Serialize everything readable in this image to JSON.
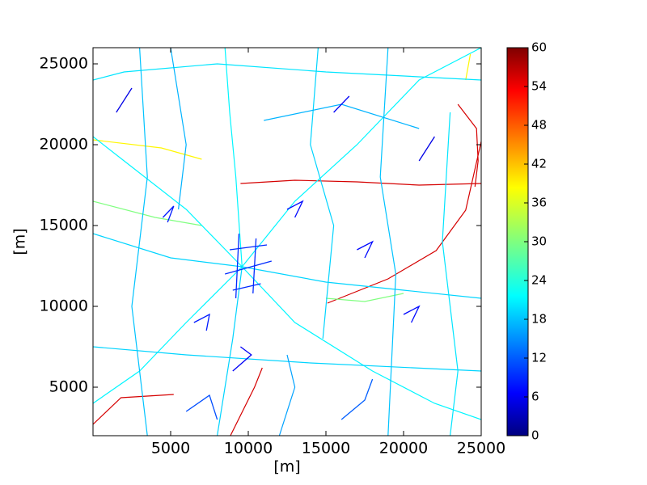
{
  "chart_data": {
    "type": "network",
    "xlabel": "[m]",
    "ylabel": "[m]",
    "xlim": [
      0,
      25000
    ],
    "ylim": [
      2000,
      26000
    ],
    "xticks": [
      5000,
      10000,
      15000,
      20000,
      25000
    ],
    "yticks": [
      5000,
      10000,
      15000,
      20000,
      25000
    ],
    "colorbar": {
      "colormap": "jet",
      "lim": [
        0,
        60
      ],
      "ticks": [
        0,
        6,
        12,
        18,
        24,
        30,
        36,
        42,
        48,
        54,
        60
      ]
    },
    "roads": [
      {
        "speed": 55,
        "x": [
          9500,
          13000,
          17000,
          21000,
          25000
        ],
        "y": [
          17600,
          17800,
          17700,
          17500,
          17600
        ]
      },
      {
        "speed": 55,
        "x": [
          15100,
          19000,
          22100,
          24000,
          25000
        ],
        "y": [
          10200,
          11700,
          13450,
          15950,
          20200
        ]
      },
      {
        "speed": 55,
        "x": [
          23500,
          24700,
          24800,
          24600
        ],
        "y": [
          22500,
          21000,
          19000,
          17400
        ]
      },
      {
        "speed": 55,
        "x": [
          8850,
          10400,
          10900
        ],
        "y": [
          2000,
          5000,
          6200
        ]
      },
      {
        "speed": 55,
        "x": [
          0,
          1800,
          5200
        ],
        "y": [
          2700,
          4350,
          4550
        ]
      },
      {
        "speed": 38,
        "x": [
          0,
          4400,
          7000
        ],
        "y": [
          20300,
          19800,
          19100
        ]
      },
      {
        "speed": 38,
        "x": [
          24000,
          24300
        ],
        "y": [
          24000,
          25600
        ]
      },
      {
        "speed": 30,
        "x": [
          0,
          4000,
          7000
        ],
        "y": [
          16500,
          15500,
          15000
        ]
      },
      {
        "speed": 30,
        "x": [
          15000,
          17500,
          20000
        ],
        "y": [
          10500,
          10300,
          10800
        ]
      },
      {
        "speed": 22,
        "x": [
          9600,
          6000,
          2000,
          0
        ],
        "y": [
          12450,
          16000,
          19000,
          20500
        ]
      },
      {
        "speed": 22,
        "x": [
          9600,
          9200,
          8800,
          8500
        ],
        "y": [
          12450,
          18000,
          22000,
          26000
        ]
      },
      {
        "speed": 22,
        "x": [
          9600,
          13000,
          17000,
          21000,
          25000
        ],
        "y": [
          12450,
          16500,
          20000,
          24000,
          26000
        ]
      },
      {
        "speed": 20,
        "x": [
          9600,
          15000,
          20000,
          25000
        ],
        "y": [
          12450,
          11500,
          11000,
          10500
        ]
      },
      {
        "speed": 22,
        "x": [
          9600,
          13000,
          18000,
          22000,
          25000
        ],
        "y": [
          12450,
          9000,
          6000,
          4000,
          3000
        ]
      },
      {
        "speed": 20,
        "x": [
          9600,
          9000,
          8500,
          8000
        ],
        "y": [
          12450,
          8000,
          5000,
          2000
        ]
      },
      {
        "speed": 22,
        "x": [
          9600,
          6000,
          3000,
          0
        ],
        "y": [
          12450,
          9000,
          6000,
          4000
        ]
      },
      {
        "speed": 20,
        "x": [
          9600,
          5000,
          0
        ],
        "y": [
          12450,
          13000,
          14500
        ]
      },
      {
        "speed": 21,
        "x": [
          0,
          2000,
          8000,
          15000,
          25000
        ],
        "y": [
          24000,
          24500,
          25000,
          24500,
          24000
        ]
      },
      {
        "speed": 20,
        "x": [
          0,
          6000,
          14000,
          25000
        ],
        "y": [
          7500,
          7000,
          6500,
          6000
        ]
      },
      {
        "speed": 19,
        "x": [
          19000,
          18500,
          19500,
          19000
        ],
        "y": [
          26000,
          18000,
          12000,
          2000
        ]
      },
      {
        "speed": 19,
        "x": [
          3000,
          3500,
          2500,
          3500
        ],
        "y": [
          26000,
          18000,
          10000,
          2000
        ]
      },
      {
        "speed": 20,
        "x": [
          14500,
          14000,
          15500,
          14800
        ],
        "y": [
          26000,
          20000,
          15000,
          8000
        ]
      },
      {
        "speed": 21,
        "x": [
          23000,
          22500,
          23500,
          23000
        ],
        "y": [
          22000,
          14000,
          6000,
          2000
        ]
      },
      {
        "speed": 18,
        "x": [
          5000,
          6000,
          5500
        ],
        "y": [
          26000,
          20000,
          16000
        ]
      },
      {
        "speed": 18,
        "x": [
          11000,
          16000,
          21000
        ],
        "y": [
          21500,
          22500,
          21000
        ]
      },
      {
        "speed": 17,
        "x": [
          12000,
          13000,
          12500
        ],
        "y": [
          2000,
          5000,
          7000
        ]
      },
      {
        "speed": 10,
        "x": [
          8500,
          11500
        ],
        "y": [
          12000,
          12800
        ]
      },
      {
        "speed": 10,
        "x": [
          8800,
          11200
        ],
        "y": [
          13500,
          13800
        ]
      },
      {
        "speed": 10,
        "x": [
          9000,
          10800
        ],
        "y": [
          11000,
          11400
        ]
      },
      {
        "speed": 10,
        "x": [
          9200,
          9400
        ],
        "y": [
          10500,
          14500
        ]
      },
      {
        "speed": 10,
        "x": [
          10300,
          10500
        ],
        "y": [
          10800,
          14200
        ]
      },
      {
        "speed": 9,
        "x": [
          6500,
          7500,
          7300
        ],
        "y": [
          9000,
          9500,
          8500
        ]
      },
      {
        "speed": 9,
        "x": [
          4500,
          5200,
          4800
        ],
        "y": [
          15500,
          16200,
          15200
        ]
      },
      {
        "speed": 8,
        "x": [
          12500,
          13500,
          13000
        ],
        "y": [
          16000,
          16500,
          15500
        ]
      },
      {
        "speed": 8,
        "x": [
          17000,
          18000,
          17500
        ],
        "y": [
          13500,
          14000,
          13000
        ]
      },
      {
        "speed": 8,
        "x": [
          20000,
          21000,
          20500
        ],
        "y": [
          9500,
          10000,
          9000
        ]
      },
      {
        "speed": 7,
        "x": [
          9000,
          10200,
          9500
        ],
        "y": [
          6000,
          7000,
          7500
        ]
      },
      {
        "speed": 7,
        "x": [
          15500,
          16500
        ],
        "y": [
          22000,
          23000
        ]
      },
      {
        "speed": 6,
        "x": [
          1500,
          2500
        ],
        "y": [
          22000,
          23500
        ]
      },
      {
        "speed": 6,
        "x": [
          21000,
          22000
        ],
        "y": [
          19000,
          20500
        ]
      },
      {
        "speed": 12,
        "x": [
          6000,
          7500,
          8000
        ],
        "y": [
          3500,
          4500,
          3000
        ]
      },
      {
        "speed": 13,
        "x": [
          16000,
          17500,
          18000
        ],
        "y": [
          3000,
          4200,
          5500
        ]
      }
    ]
  }
}
